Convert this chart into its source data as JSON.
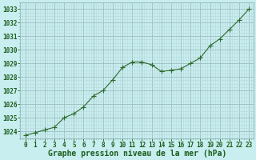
{
  "x": [
    0,
    1,
    2,
    3,
    4,
    5,
    6,
    7,
    8,
    9,
    10,
    11,
    12,
    13,
    14,
    15,
    16,
    17,
    18,
    19,
    20,
    21,
    22,
    23
  ],
  "y": [
    1023.7,
    1023.9,
    1024.1,
    1024.3,
    1025.0,
    1025.3,
    1025.8,
    1026.6,
    1027.0,
    1027.8,
    1028.7,
    1029.1,
    1029.1,
    1028.9,
    1028.4,
    1028.5,
    1028.6,
    1029.0,
    1029.4,
    1030.3,
    1030.8,
    1031.5,
    1032.2,
    1033.0
  ],
  "line_color": "#2d6a2d",
  "marker": "+",
  "marker_size": 4,
  "bg_color": "#c8eef0",
  "grid_minor_color": "#b8d8da",
  "grid_major_color": "#9dbebf",
  "xlabel": "Graphe pression niveau de la mer (hPa)",
  "xlabel_color": "#1a5c1a",
  "xlabel_fontsize": 7,
  "tick_color": "#1a5c1a",
  "tick_fontsize": 5.5,
  "ylim": [
    1023.5,
    1033.5
  ],
  "yticks": [
    1024,
    1025,
    1026,
    1027,
    1028,
    1029,
    1030,
    1031,
    1032,
    1033
  ],
  "xlim": [
    -0.5,
    23.5
  ],
  "xticks": [
    0,
    1,
    2,
    3,
    4,
    5,
    6,
    7,
    8,
    9,
    10,
    11,
    12,
    13,
    14,
    15,
    16,
    17,
    18,
    19,
    20,
    21,
    22,
    23
  ],
  "line_width": 0.8
}
